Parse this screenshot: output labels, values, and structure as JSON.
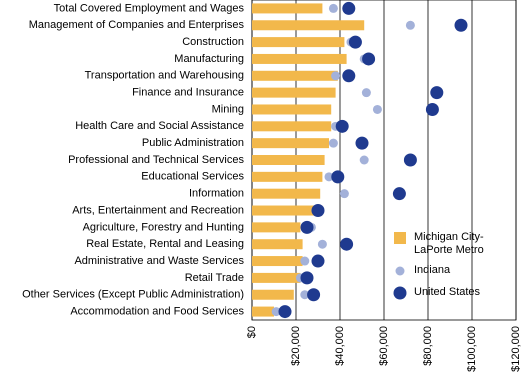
{
  "chart_data": {
    "type": "bar-dot",
    "categories": [
      "Total Covered Employment and Wages",
      "Management of Companies and Enterprises",
      "Construction",
      "Manufacturing",
      "Transportation and Warehousing",
      "Finance and Insurance",
      "Mining",
      "Health Care and Social Assistance",
      "Public Administration",
      "Professional and Technical Services",
      "Educational Services",
      "Information",
      "Arts, Entertainment and Recreation",
      "Agriculture, Forestry and Hunting",
      "Real Estate, Rental and Leasing",
      "Administrative and Waste Services",
      "Retail Trade",
      "Other Services (Except Public Administration)",
      "Accommodation and Food Services"
    ],
    "series": [
      {
        "name": "Michigan City-LaPorte Metro",
        "color": "#f2b84b",
        "mark": "bar",
        "values": [
          32000,
          51000,
          42000,
          43000,
          39000,
          38000,
          36000,
          36000,
          35000,
          33000,
          32000,
          31000,
          29000,
          22000,
          23000,
          23000,
          22000,
          19000,
          10000
        ]
      },
      {
        "name": "Indiana",
        "color": "#a3b1d9",
        "mark": "dot",
        "values": [
          37000,
          72000,
          45000,
          51000,
          38000,
          52000,
          57000,
          38000,
          37000,
          51000,
          35000,
          42000,
          29000,
          27000,
          32000,
          24000,
          22000,
          24000,
          11000
        ]
      },
      {
        "name": "United States",
        "color": "#1f3a8f",
        "mark": "dot",
        "values": [
          44000,
          95000,
          47000,
          53000,
          44000,
          84000,
          82000,
          41000,
          50000,
          72000,
          39000,
          67000,
          30000,
          25000,
          43000,
          30000,
          25000,
          28000,
          15000
        ]
      }
    ],
    "xlim": [
      0,
      120000
    ],
    "xticks": [
      {
        "value": 0,
        "label": "$0"
      },
      {
        "value": 20000,
        "label": "$20,000"
      },
      {
        "value": 40000,
        "label": "$40,000"
      },
      {
        "value": 60000,
        "label": "$60,000"
      },
      {
        "value": 80000,
        "label": "$80,000"
      },
      {
        "value": 100000,
        "label": "$100,000"
      },
      {
        "value": 120000,
        "label": "$120,000"
      }
    ],
    "grid": true
  }
}
